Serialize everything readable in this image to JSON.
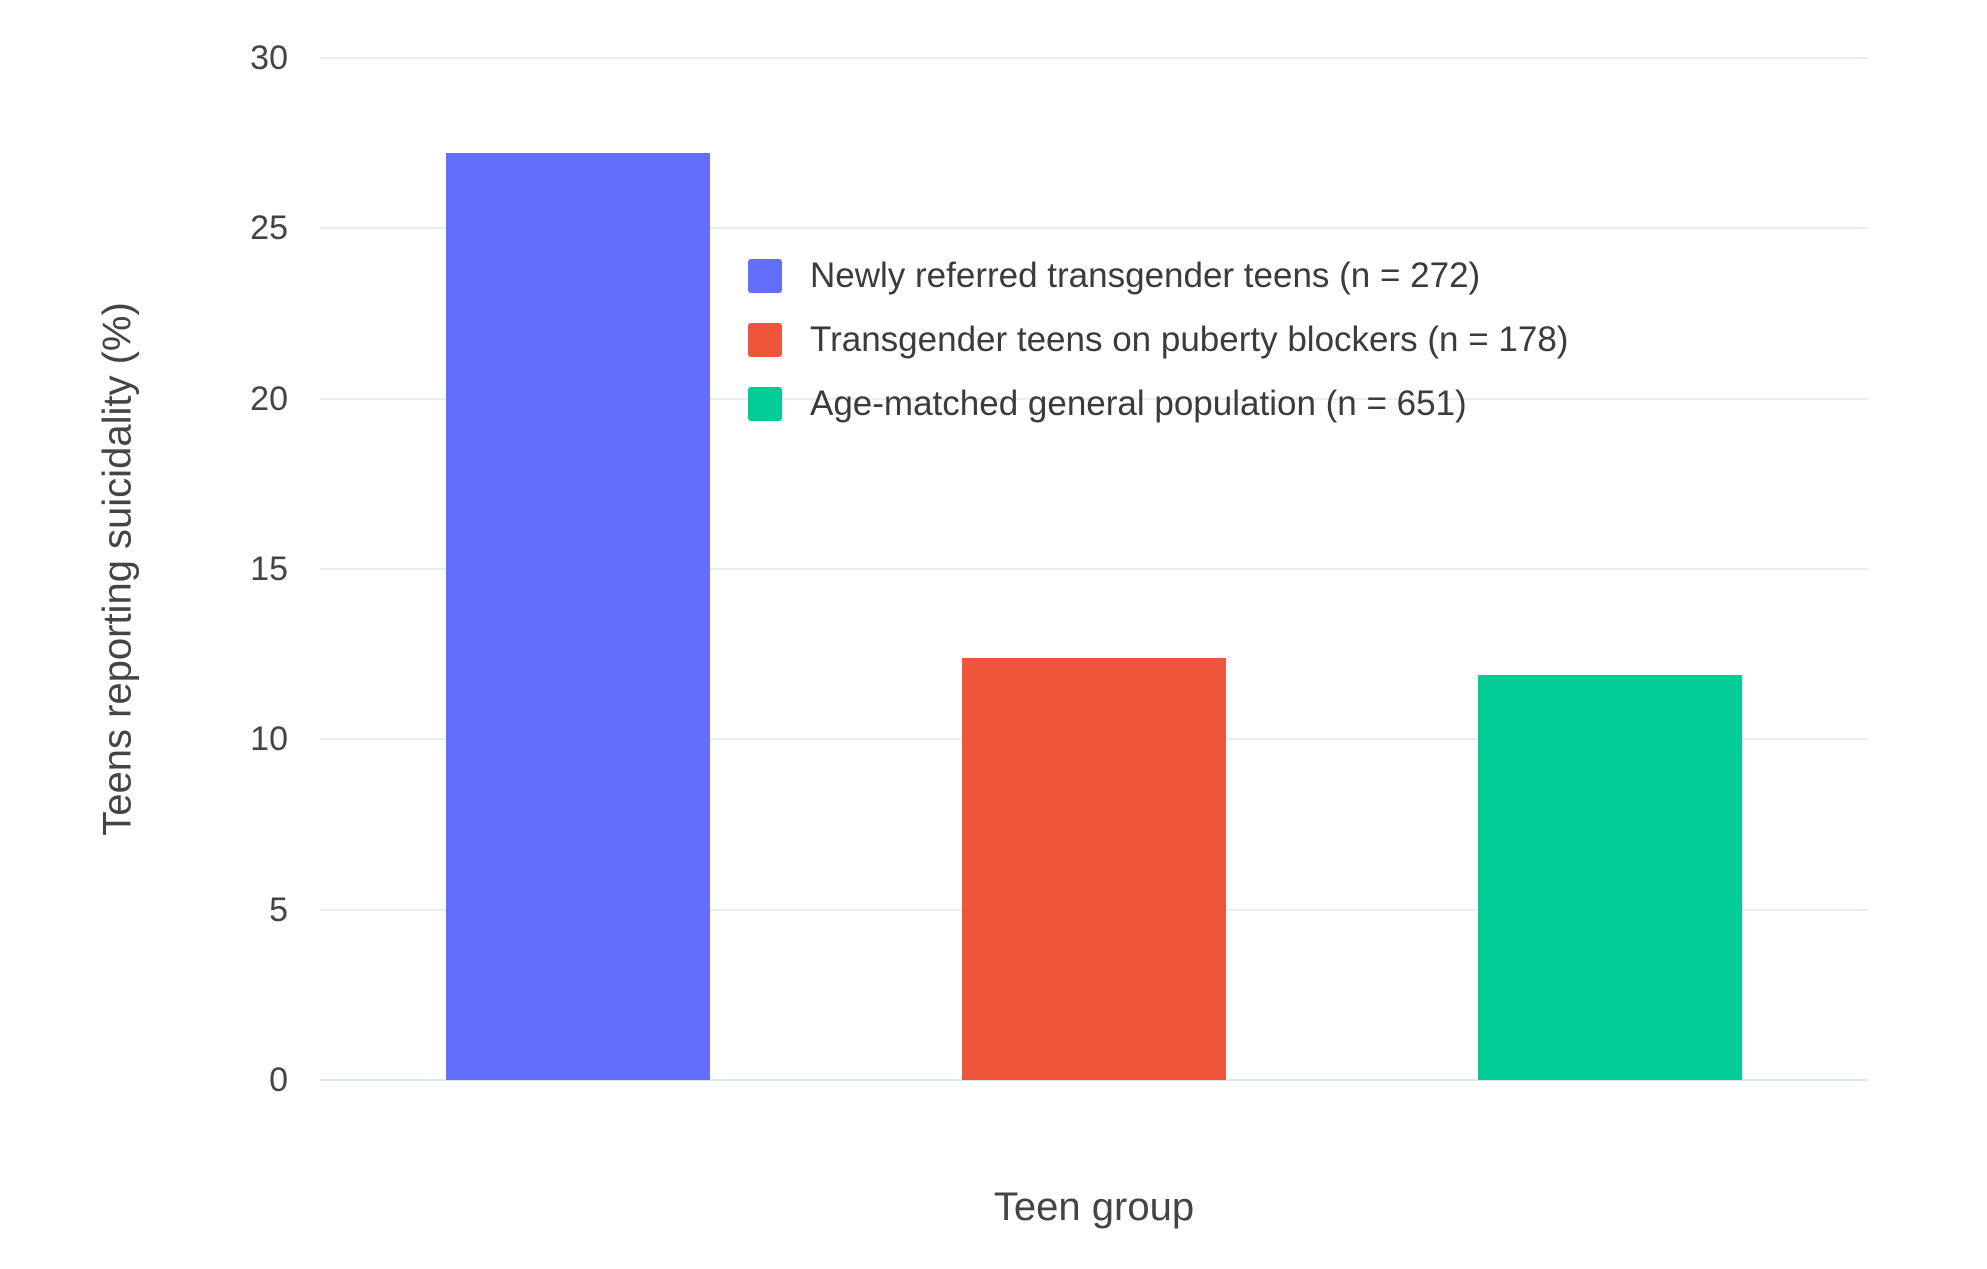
{
  "chart_data": {
    "type": "bar",
    "title": "",
    "xlabel": "Teen group",
    "ylabel": "Teens reporting suicidality (%)",
    "ylim": [
      0,
      30
    ],
    "yticks": [
      0,
      5,
      10,
      15,
      20,
      25,
      30
    ],
    "grid": true,
    "legend_position": "inside-top-center",
    "background_color": "#ffffff",
    "grid_color": "#e8edf4",
    "text_color": "#444444",
    "series": [
      {
        "name": "Newly referred transgender teens (n = 272)",
        "value": 27.2,
        "color": "#636EFA"
      },
      {
        "name": "Transgender teens on puberty blockers (n = 178)",
        "value": 12.4,
        "color": "#EF553B"
      },
      {
        "name": "Age-matched general population (n = 651)",
        "value": 11.9,
        "color": "#00CC96"
      }
    ]
  }
}
